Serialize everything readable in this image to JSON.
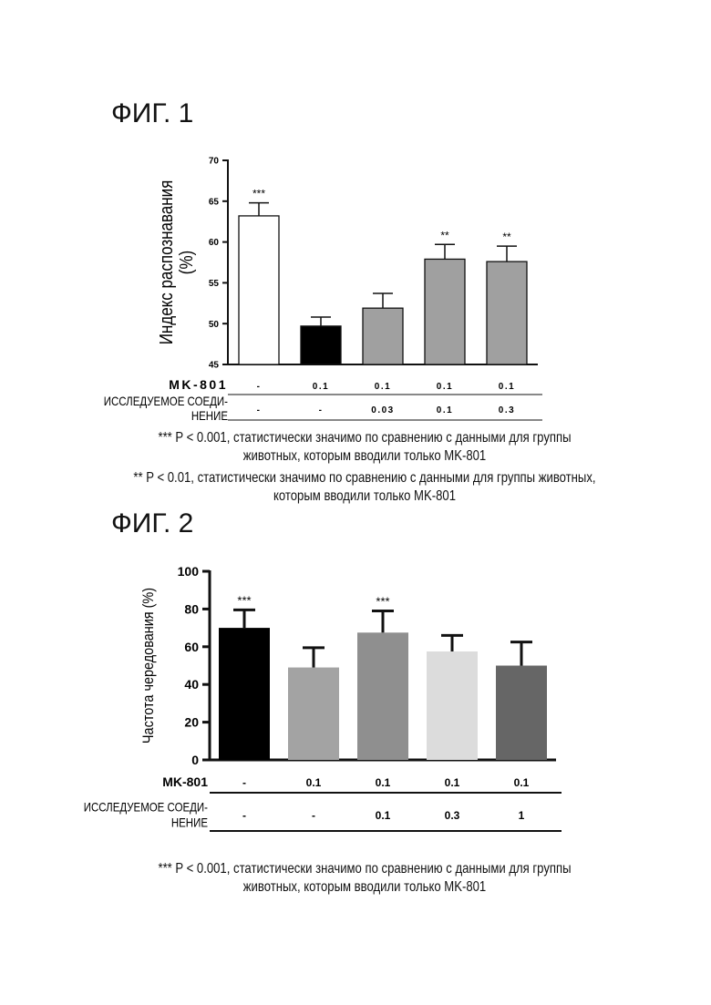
{
  "figures": [
    {
      "title": "ФИГ. 1",
      "notes": [
        "*** P < 0.001, статистически значимо по сравнению с данными для группы животных, которым вводили только MK-801",
        "** P < 0.01, статистически значимо по сравнению с данными для группы животных, которым вводили только MK-801"
      ]
    },
    {
      "title": "ФИГ. 2",
      "notes": [
        "*** P < 0.001, статистически значимо по сравнению с данными для группы животных, которым вводили только MK-801"
      ]
    }
  ],
  "chart_data": [
    {
      "type": "bar",
      "ylabel": [
        "Индекс распознавания",
        "(%)"
      ],
      "ylim": [
        45,
        70
      ],
      "yticks": [
        45,
        50,
        55,
        60,
        65,
        70
      ],
      "values": [
        63.2,
        49.7,
        51.9,
        57.9,
        57.6
      ],
      "errors": [
        1.6,
        1.1,
        1.8,
        1.8,
        1.9
      ],
      "significance": [
        "***",
        "",
        "",
        "**",
        "**"
      ],
      "colors": [
        "#ffffff",
        "#000000",
        "#a0a0a0",
        "#a0a0a0",
        "#a0a0a0"
      ],
      "table": [
        {
          "label": "MK-801",
          "values": [
            "-",
            "0.1",
            "0.1",
            "0.1",
            "0.1"
          ]
        },
        {
          "label": [
            "ИССЛЕДУЕМОЕ СОЕДИ-",
            "НЕНИЕ"
          ],
          "values": [
            "-",
            "-",
            "0.03",
            "0.1",
            "0.3"
          ]
        }
      ]
    },
    {
      "type": "bar",
      "ylabel": [
        "Частота чередования (%)"
      ],
      "ylim": [
        0,
        100
      ],
      "yticks": [
        0,
        20,
        40,
        60,
        80,
        100
      ],
      "values": [
        70,
        49,
        67.5,
        57.5,
        50
      ],
      "errors": [
        9.5,
        10.5,
        11.5,
        8.5,
        12.5
      ],
      "significance": [
        "***",
        "",
        "***",
        "",
        ""
      ],
      "colors": [
        "#000000",
        "#a3a3a3",
        "#8f8f8f",
        "#dcdcdc",
        "#666666"
      ],
      "table": [
        {
          "label": "MK-801",
          "values": [
            "-",
            "0.1",
            "0.1",
            "0.1",
            "0.1"
          ]
        },
        {
          "label": [
            "ИССЛЕДУЕМОЕ СОЕДИ-",
            "НЕНИЕ"
          ],
          "values": [
            "-",
            "-",
            "0.1",
            "0.3",
            "1"
          ]
        }
      ]
    }
  ]
}
